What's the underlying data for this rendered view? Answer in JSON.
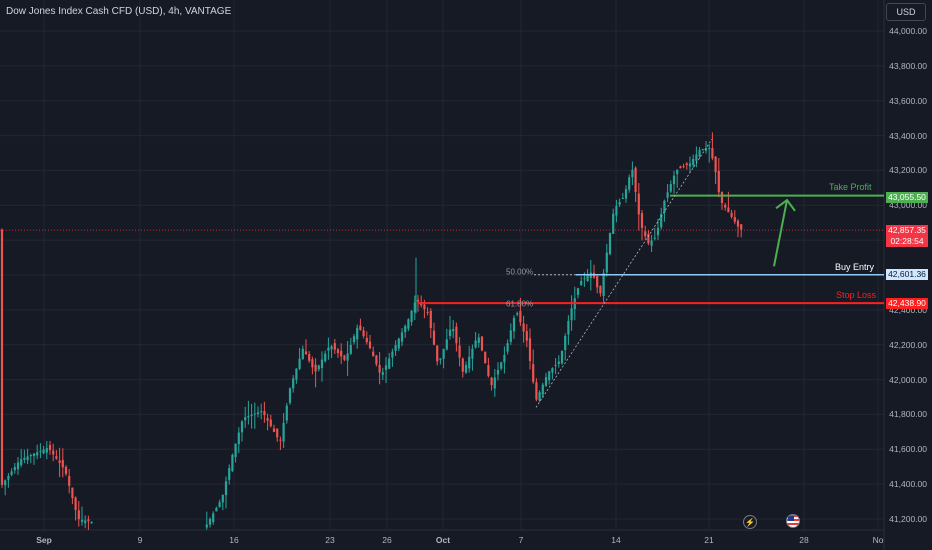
{
  "header": {
    "title": "Dow Jones Index Cash CFD (USD), 4h, VANTAGE",
    "currency": "USD"
  },
  "chart_data": {
    "type": "candlestick",
    "title": "Dow Jones Index Cash CFD (USD), 4h, VANTAGE",
    "ylim": [
      41140,
      44100
    ],
    "y_ticks": [
      "44,000.00",
      "43,800.00",
      "43,600.00",
      "43,400.00",
      "43,200.00",
      "43,000.00",
      "42,800.00",
      "42,600.00",
      "42,400.00",
      "42,200.00",
      "42,000.00",
      "41,800.00",
      "41,600.00",
      "41,400.00",
      "41,200.00"
    ],
    "x_ticks": [
      "Sep",
      "9",
      "16",
      "23",
      "26",
      "Oct",
      "7",
      "14",
      "21",
      "28",
      "No"
    ],
    "x_ticks_bold": [
      "Sep",
      "Oct"
    ],
    "current_price": "42,857.35",
    "countdown": "02:28:54",
    "levels": {
      "take_profit": {
        "label": "Take Profit",
        "price": 43055.5,
        "tag": "43,055.50",
        "color": "#4caf50"
      },
      "buy_entry": {
        "label": "Buy Entry",
        "price": 42601.36,
        "tag": "42,601.36",
        "color": "#2962ff"
      },
      "stop_loss": {
        "label": "Stop Loss",
        "price": 42438.9,
        "tag": "42,438.90",
        "color": "#ff1f1f"
      }
    },
    "fib_levels": [
      {
        "label": "50.00%",
        "price": 42601.36
      },
      {
        "label": "61.80%",
        "price": 42438.9
      }
    ],
    "candles_approx_close_path": [
      41380,
      41560,
      41610,
      41460,
      41180,
      41230,
      41210,
      41240,
      41480,
      41760,
      41700,
      41830,
      41780,
      41640,
      42020,
      42180,
      42050,
      42230,
      42110,
      42300,
      42200,
      42060,
      42160,
      42200,
      42230,
      42300,
      42450,
      42180,
      42370,
      42360,
      42300,
      42180,
      42040,
      42170,
      42160,
      42220,
      42110,
      42280,
      42060,
      42150,
      41980,
      42060,
      42160,
      42460,
      42700,
      42860,
      43030,
      43100,
      43220,
      43060,
      42800,
      42910,
      43150,
      43300,
      43310,
      43330,
      43370,
      43300,
      43040,
      42930,
      42880,
      42860
    ],
    "colors": {
      "up": "#26a69a",
      "down": "#ef5350",
      "background": "#161a25",
      "grid": "#232733"
    }
  },
  "icons": {
    "lightning": "lightning-icon",
    "flag": "us-flag-icon"
  }
}
